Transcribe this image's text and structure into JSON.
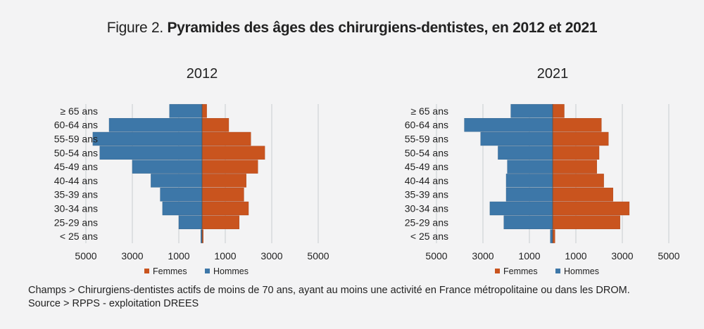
{
  "figure": {
    "label": "Figure 2.",
    "title": "Pyramides des âges des chirurgiens-dentistes, en 2012 et 2021"
  },
  "colors": {
    "femmes": "#c9541e",
    "hommes": "#3d77a8",
    "gridline": "#cfd3d6",
    "axis": "#222222"
  },
  "chart_data": [
    {
      "type": "bar",
      "orientation": "population-pyramid",
      "title": "2012",
      "categories": [
        "≥ 65 ans",
        "60-64 ans",
        "55-59 ans",
        "50-54 ans",
        "45-49 ans",
        "40-44 ans",
        "35-39 ans",
        "30-34 ans",
        "25-29 ans",
        "< 25 ans"
      ],
      "series": [
        {
          "name": "Femmes",
          "side": "right",
          "values": [
            200,
            1150,
            2100,
            2700,
            2400,
            1900,
            1800,
            2000,
            1600,
            50
          ]
        },
        {
          "name": "Hommes",
          "side": "left",
          "values": [
            1400,
            4000,
            4700,
            4400,
            3000,
            2200,
            1800,
            1700,
            1000,
            50
          ]
        }
      ],
      "x_ticks": [
        "5000",
        "3000",
        "1000",
        "1000",
        "3000",
        "5000"
      ],
      "xlim": [
        -5000,
        5000
      ],
      "grid": true,
      "legend": "bottom"
    },
    {
      "type": "bar",
      "orientation": "population-pyramid",
      "title": "2021",
      "categories": [
        "≥ 65 ans",
        "60-64 ans",
        "55-59 ans",
        "50-54 ans",
        "45-49 ans",
        "40-44 ans",
        "35-39 ans",
        "30-34 ans",
        "25-29 ans",
        "< 25 ans"
      ],
      "series": [
        {
          "name": "Femmes",
          "side": "right",
          "values": [
            500,
            2100,
            2400,
            2000,
            1900,
            2200,
            2600,
            3300,
            2900,
            100
          ]
        },
        {
          "name": "Hommes",
          "side": "left",
          "values": [
            1800,
            3800,
            3100,
            2350,
            1950,
            2000,
            2000,
            2700,
            2100,
            100
          ]
        }
      ],
      "x_ticks": [
        "5000",
        "3000",
        "1000",
        "1000",
        "3000",
        "5000"
      ],
      "xlim": [
        -5000,
        5000
      ],
      "grid": true,
      "legend": "bottom"
    }
  ],
  "notes": {
    "champs": "Champs > Chirurgiens-dentistes actifs de moins de 70 ans, ayant au moins une activité en France métropolitaine ou dans les DROM.",
    "source": "Source > RPPS - exploitation DREES"
  }
}
